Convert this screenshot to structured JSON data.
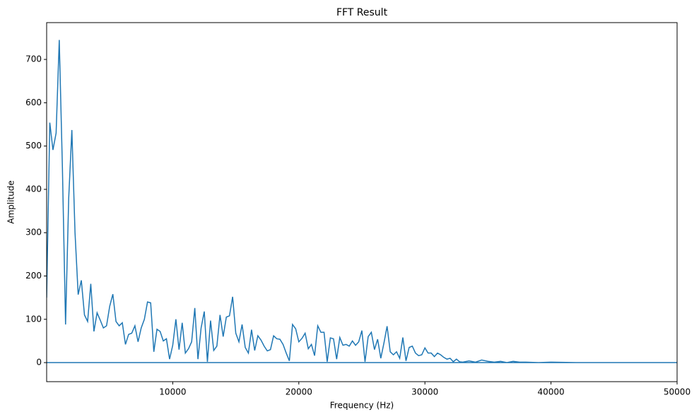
{
  "chart_data": {
    "type": "line",
    "title": "FFT Result",
    "xlabel": "Frequency (Hz)",
    "ylabel": "Amplitude",
    "x": [
      0,
      250,
      500,
      750,
      1000,
      1250,
      1500,
      1750,
      2000,
      2250,
      2500,
      2750,
      3000,
      3250,
      3500,
      3750,
      4000,
      4250,
      4500,
      4750,
      5000,
      5250,
      5500,
      5750,
      6000,
      6250,
      6500,
      6750,
      7000,
      7250,
      7500,
      7750,
      8000,
      8250,
      8500,
      8750,
      9000,
      9250,
      9500,
      9750,
      10000,
      10250,
      10500,
      10750,
      11000,
      11250,
      11500,
      11750,
      12000,
      12250,
      12500,
      12750,
      13000,
      13250,
      13500,
      13750,
      14000,
      14250,
      14500,
      14750,
      15000,
      15250,
      15500,
      15750,
      16000,
      16250,
      16500,
      16750,
      17000,
      17250,
      17500,
      17750,
      18000,
      18250,
      18500,
      18750,
      19000,
      19250,
      19500,
      19750,
      20000,
      20250,
      20500,
      20750,
      21000,
      21250,
      21500,
      21750,
      22000,
      22250,
      22500,
      22750,
      23000,
      23250,
      23500,
      23750,
      24000,
      24250,
      24500,
      24750,
      25000,
      25250,
      25500,
      25750,
      26000,
      26250,
      26500,
      26750,
      27000,
      27250,
      27500,
      27750,
      28000,
      28250,
      28500,
      28750,
      29000,
      29250,
      29500,
      29750,
      30000,
      30250,
      30500,
      30750,
      31000,
      31250,
      31500,
      31750,
      32000,
      32250,
      32500,
      32750,
      33000,
      33500,
      34000,
      34500,
      35000,
      35500,
      36000,
      36500,
      37000,
      37500,
      38000,
      39000,
      40000,
      42000,
      45000,
      50000,
      0
    ],
    "series": [
      {
        "name": "FFT",
        "color": "#1f77b4",
        "values": [
          150,
          554,
          491,
          530,
          745,
          450,
          88,
          380,
          537,
          300,
          157,
          190,
          110,
          95,
          182,
          72,
          115,
          98,
          80,
          85,
          130,
          158,
          95,
          85,
          92,
          42,
          65,
          68,
          85,
          48,
          80,
          100,
          140,
          138,
          25,
          77,
          72,
          50,
          55,
          8,
          40,
          100,
          30,
          92,
          22,
          32,
          48,
          126,
          8,
          80,
          118,
          2,
          97,
          28,
          38,
          110,
          60,
          105,
          108,
          152,
          68,
          48,
          88,
          35,
          22,
          76,
          28,
          62,
          52,
          38,
          27,
          30,
          62,
          55,
          54,
          42,
          22,
          4,
          88,
          78,
          48,
          56,
          68,
          32,
          42,
          16,
          85,
          70,
          70,
          2,
          57,
          55,
          8,
          58,
          40,
          42,
          38,
          50,
          40,
          48,
          74,
          2,
          60,
          70,
          30,
          54,
          10,
          45,
          84,
          25,
          18,
          25,
          10,
          58,
          4,
          35,
          38,
          22,
          16,
          18,
          34,
          22,
          22,
          14,
          22,
          18,
          12,
          8,
          10,
          2,
          8,
          2,
          1,
          4,
          1,
          6,
          3,
          1,
          3,
          0,
          3,
          1,
          1,
          0,
          1,
          0,
          0,
          0,
          0
        ]
      }
    ],
    "xlim": [
      0,
      50000
    ],
    "ylim": [
      -44,
      785
    ],
    "xticks": [
      10000,
      20000,
      30000,
      40000,
      50000
    ],
    "yticks": [
      0,
      100,
      200,
      300,
      400,
      500,
      600,
      700
    ]
  }
}
